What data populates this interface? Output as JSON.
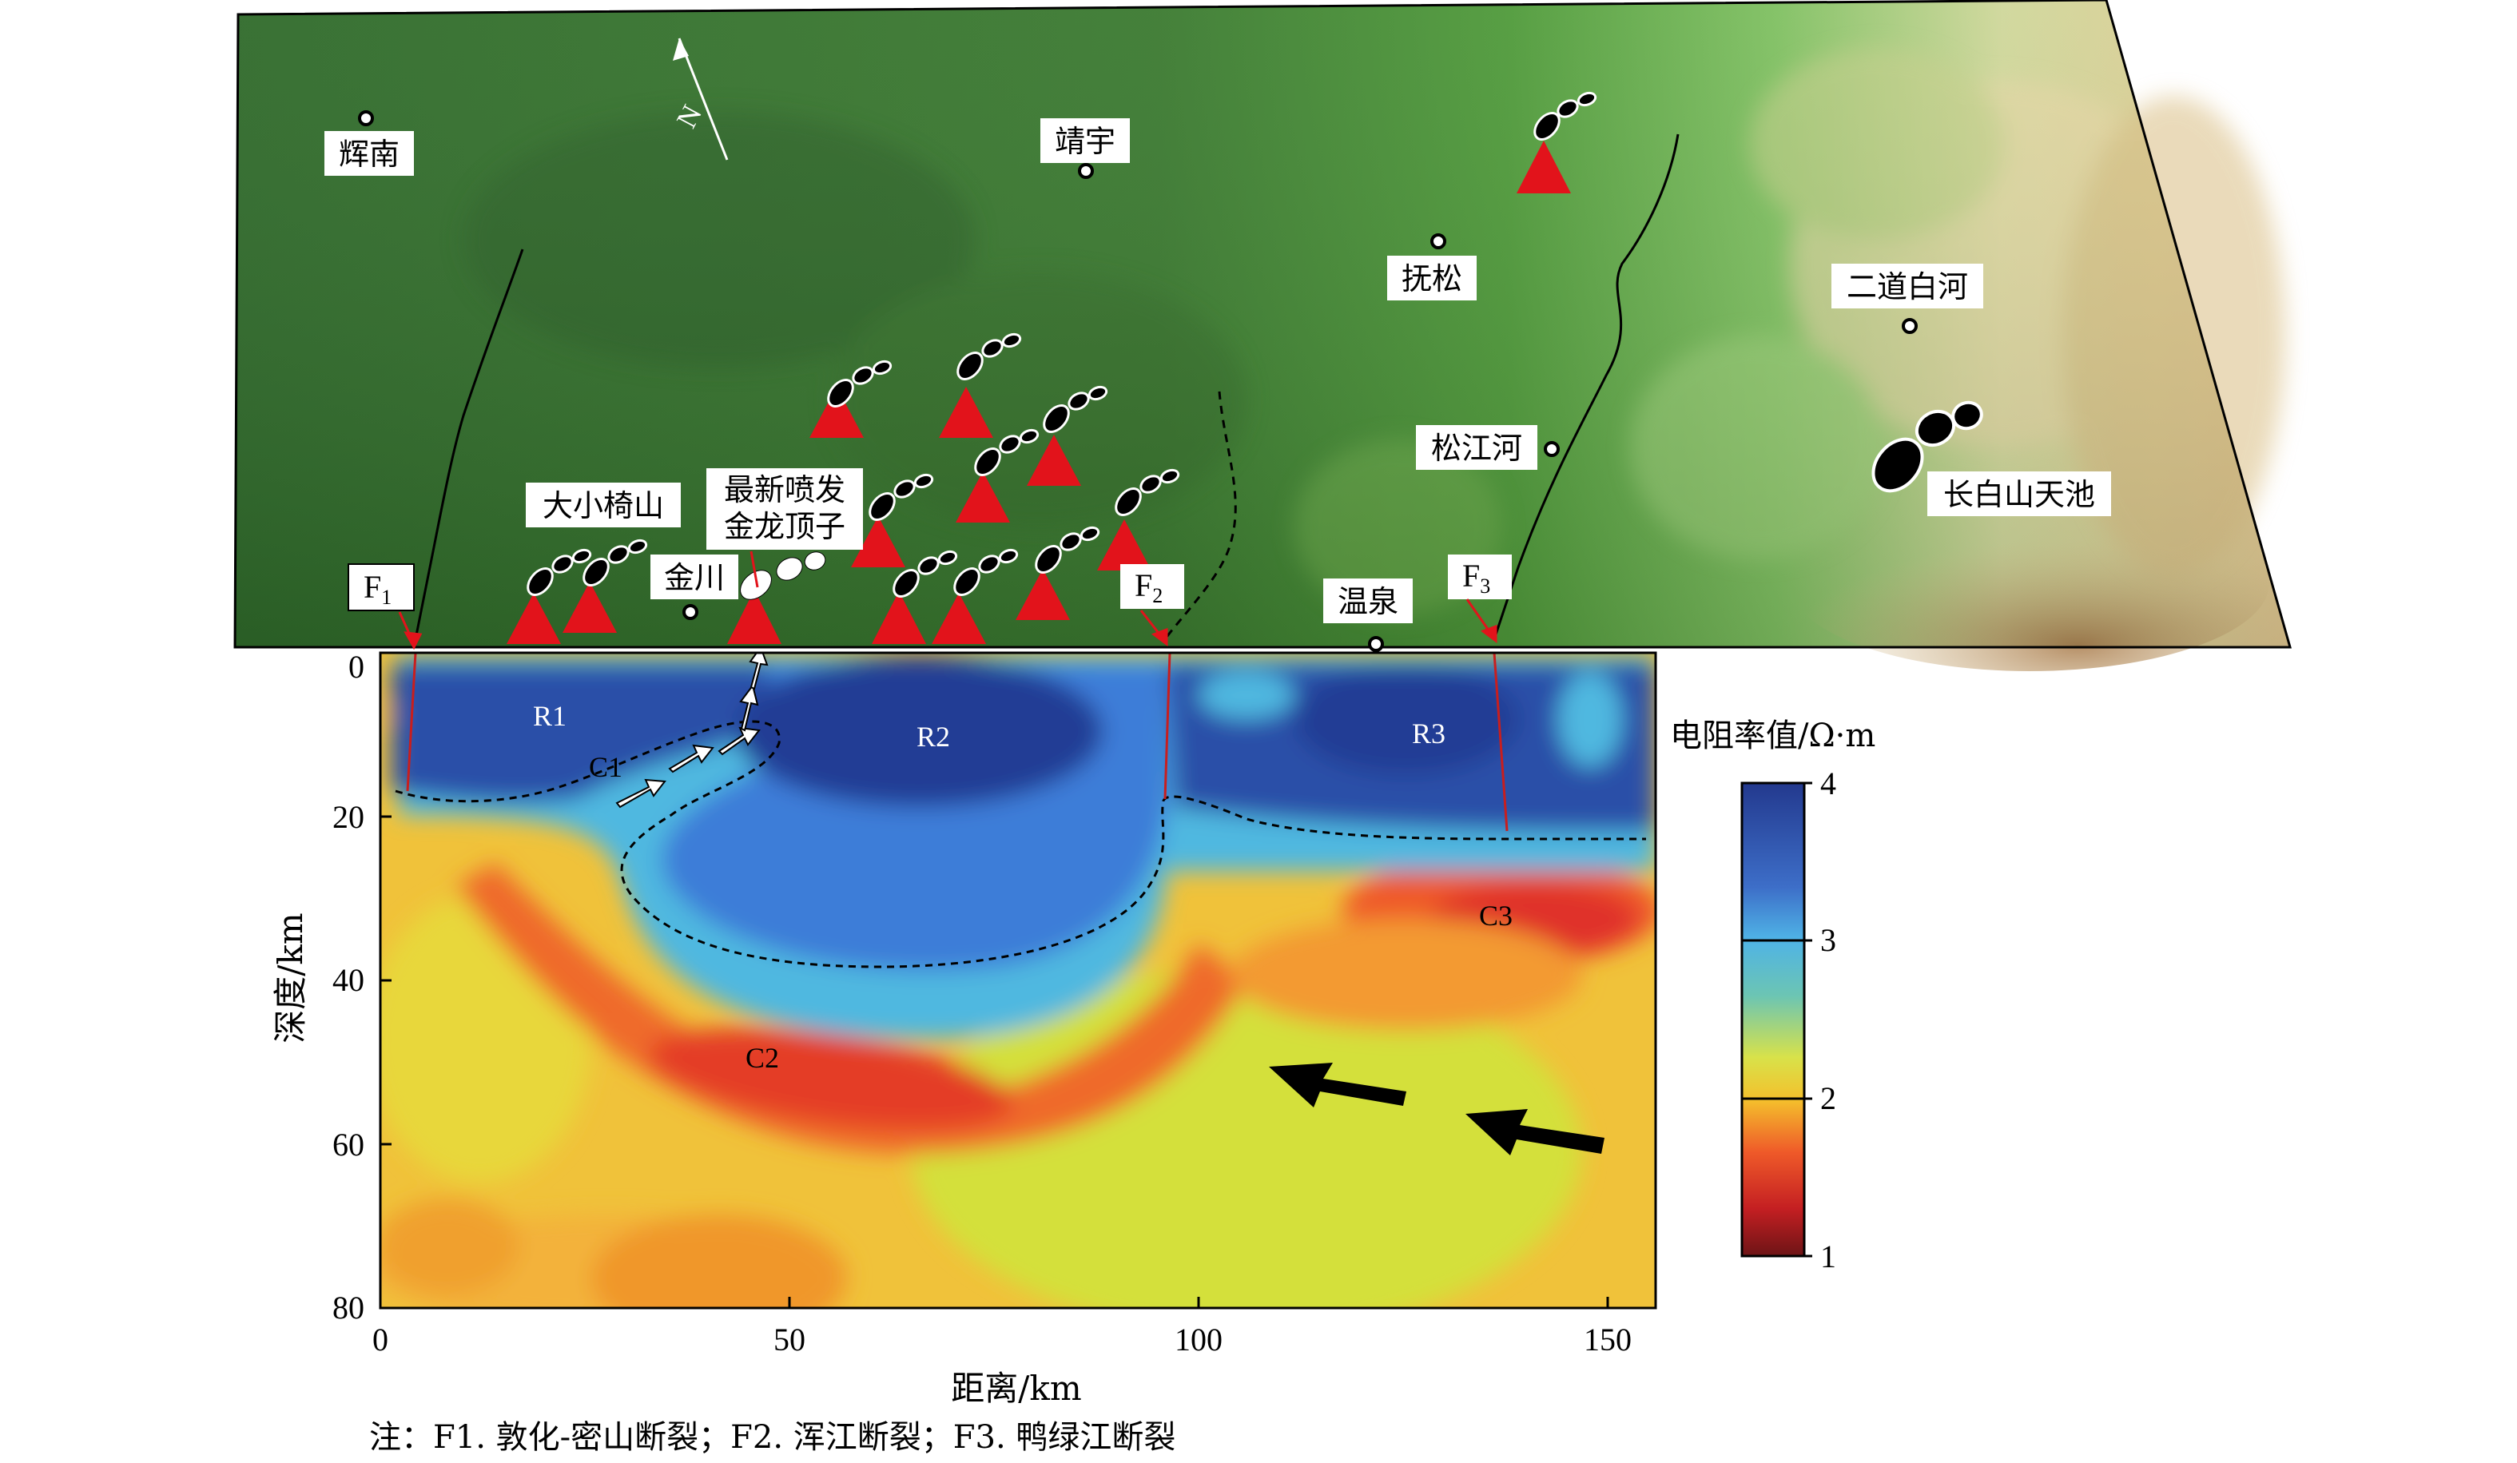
{
  "colors": {
    "resistive": "#2c4fa8",
    "resistive_light": "#3d7dd8",
    "mid": "#4fb8e0",
    "transition": "#c9df3a",
    "background": "#f0c23a",
    "conductive": "#ee6a2a",
    "conductive_strong": "#e23a2a",
    "volcano": "#e2131b",
    "terrain_green": "#3f7e32",
    "terrain_high": "#d9c48c"
  },
  "map": {
    "north_label": "N",
    "places": [
      {
        "name": "辉南"
      },
      {
        "name": "靖宇"
      },
      {
        "name": "抚松"
      },
      {
        "name": "二道白河"
      },
      {
        "name": "松江河"
      },
      {
        "name": "长白山天池"
      },
      {
        "name": "大小椅山"
      },
      {
        "name": "金川"
      },
      {
        "name": "温泉"
      }
    ],
    "latest_eruption": [
      "最新喷发",
      "金龙顶子"
    ],
    "faults": [
      {
        "label": "F",
        "sub": "1"
      },
      {
        "label": "F",
        "sub": "2"
      },
      {
        "label": "F",
        "sub": "3"
      }
    ]
  },
  "section": {
    "regions": [
      "R1",
      "R2",
      "R3",
      "C1",
      "C2",
      "C3"
    ],
    "x_label": "距离/km",
    "y_label": "深度/km",
    "x_ticks": [
      "0",
      "50",
      "100",
      "150"
    ],
    "y_ticks": [
      "0",
      "20",
      "40",
      "60",
      "80"
    ]
  },
  "colorbar": {
    "title": "电阻率值/Ω·m",
    "ticks": [
      "4",
      "3",
      "2",
      "1"
    ]
  },
  "note": "注：F1. 敦化-密山断裂；F2. 浑江断裂；F3. 鸭绿江断裂",
  "chart_data": {
    "type": "heatmap",
    "xlabel": "距离/km",
    "ylabel": "深度/km",
    "xlim": [
      0,
      155
    ],
    "ylim": [
      80,
      0
    ],
    "x_ticks": [
      0,
      50,
      100,
      150
    ],
    "y_ticks": [
      0,
      20,
      40,
      60,
      80
    ],
    "colorbar_label": "电阻率值/Ω·m",
    "colorbar_range": [
      1,
      4
    ],
    "colorbar_ticks": [
      1,
      2,
      3,
      4
    ]
  }
}
